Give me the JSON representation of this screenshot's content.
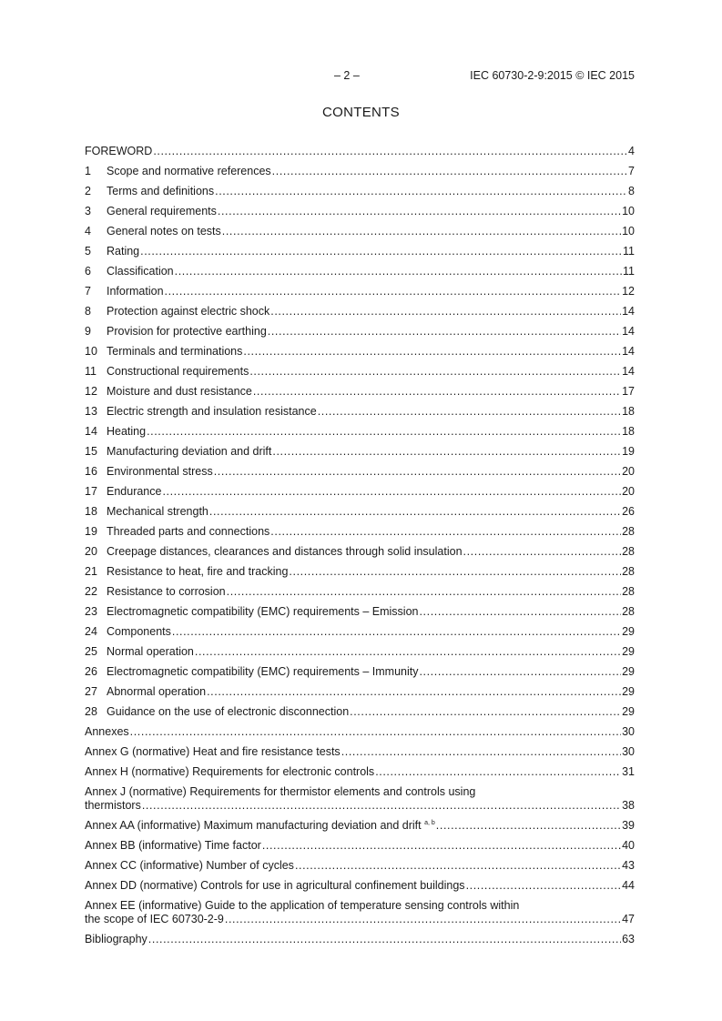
{
  "header": {
    "page_number": "– 2 –",
    "standard_ref": "IEC 60730-2-9:2015 © IEC 2015"
  },
  "title": "CONTENTS",
  "toc": [
    {
      "num": "",
      "title": "FOREWORD",
      "page": "4"
    },
    {
      "num": "1",
      "title": "Scope and normative references",
      "page": "7"
    },
    {
      "num": "2",
      "title": "Terms and definitions",
      "page": "8"
    },
    {
      "num": "3",
      "title": "General requirements",
      "page": "10"
    },
    {
      "num": "4",
      "title": "General notes on tests",
      "page": "10"
    },
    {
      "num": "5",
      "title": "Rating",
      "page": "11"
    },
    {
      "num": "6",
      "title": "Classification",
      "page": "11"
    },
    {
      "num": "7",
      "title": "Information",
      "page": "12"
    },
    {
      "num": "8",
      "title": "Protection against electric shock",
      "page": "14"
    },
    {
      "num": "9",
      "title": "Provision for protective earthing",
      "page": "14"
    },
    {
      "num": "10",
      "title": "Terminals and terminations",
      "page": "14"
    },
    {
      "num": "11",
      "title": "Constructional requirements",
      "page": "14"
    },
    {
      "num": "12",
      "title": "Moisture and dust resistance",
      "page": "17"
    },
    {
      "num": "13",
      "title": "Electric strength and insulation resistance",
      "page": "18"
    },
    {
      "num": "14",
      "title": "Heating",
      "page": "18"
    },
    {
      "num": "15",
      "title": "Manufacturing deviation and drift",
      "page": "19"
    },
    {
      "num": "16",
      "title": "Environmental stress",
      "page": "20"
    },
    {
      "num": "17",
      "title": "Endurance",
      "page": "20"
    },
    {
      "num": "18",
      "title": "Mechanical strength",
      "page": "26"
    },
    {
      "num": "19",
      "title": "Threaded parts and connections",
      "page": "28"
    },
    {
      "num": "20",
      "title": "Creepage distances, clearances and distances through solid insulation",
      "page": "28"
    },
    {
      "num": "21",
      "title": "Resistance to heat, fire and tracking",
      "page": "28"
    },
    {
      "num": "22",
      "title": "Resistance to corrosion",
      "page": "28"
    },
    {
      "num": "23",
      "title": "Electromagnetic compatibility (EMC) requirements – Emission",
      "page": "28"
    },
    {
      "num": "24",
      "title": "Components",
      "page": "29"
    },
    {
      "num": "25",
      "title": "Normal operation",
      "page": "29"
    },
    {
      "num": "26",
      "title": "Electromagnetic compatibility (EMC) requirements – Immunity",
      "page": "29"
    },
    {
      "num": "27",
      "title": "Abnormal operation",
      "page": "29"
    },
    {
      "num": "28",
      "title": "Guidance on the use of electronic disconnection",
      "page": "29"
    }
  ],
  "annexes": [
    {
      "title": "Annexes",
      "page": "30"
    },
    {
      "title": "Annex G (normative)  Heat and fire resistance tests",
      "page": "30"
    },
    {
      "title": "Annex H (normative)  Requirements for electronic controls",
      "page": "31"
    },
    {
      "title": "Annex J (normative)  Requirements for thermistor elements and controls using",
      "title_cont": "thermistors",
      "page": "38"
    },
    {
      "title": "Annex AA (informative)  Maximum manufacturing deviation and drift",
      "sup": "a, b",
      "page": "39"
    },
    {
      "title": "Annex BB (informative)  Time factor",
      "page": "40"
    },
    {
      "title": "Annex CC (informative)  Number of cycles",
      "page": "43"
    },
    {
      "title": "Annex DD (normative)  Controls for use in agricultural confinement buildings",
      "page": "44"
    },
    {
      "title": "Annex EE (informative)  Guide to the application of temperature sensing controls  within",
      "title_cont": "the scope of IEC 60730-2-9",
      "page": "47"
    },
    {
      "title": "Bibliography",
      "page": "63"
    }
  ]
}
